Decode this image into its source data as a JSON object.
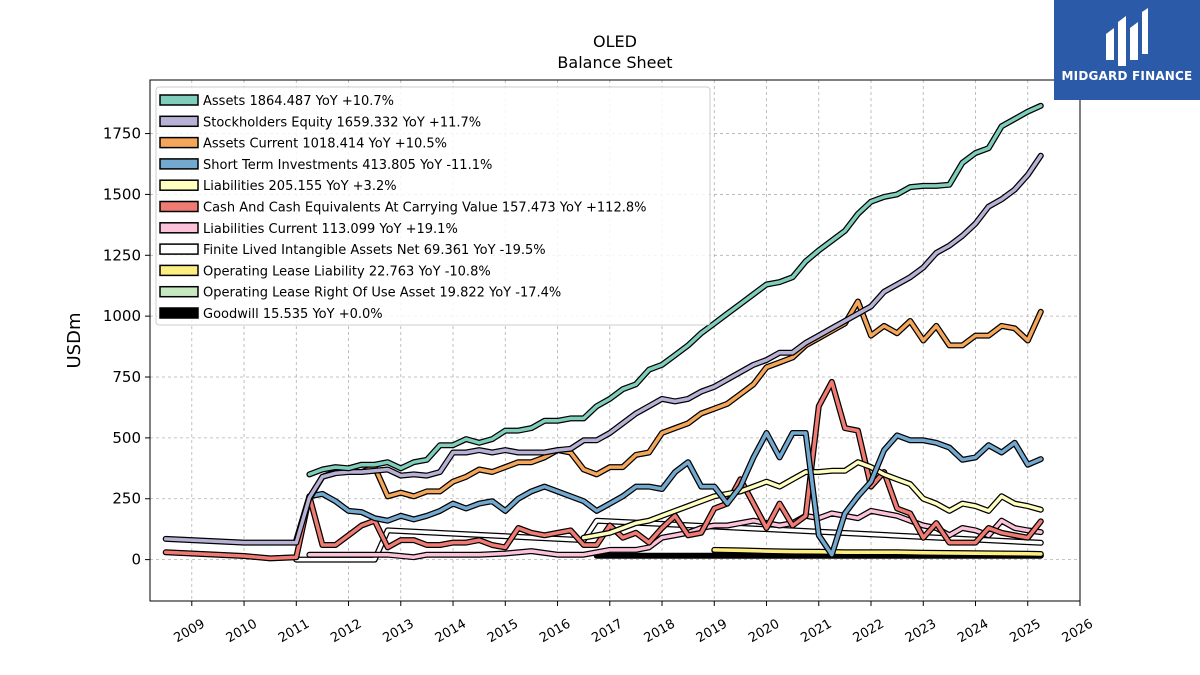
{
  "logo": {
    "brand": "MIDGARD FINANCE"
  },
  "chart_data": {
    "type": "line",
    "title": "OLED",
    "subtitle": "Balance  Sheet",
    "ylabel": "USDm",
    "xlabel": "",
    "xlim": [
      2008.2,
      2026.0
    ],
    "ylim": [
      -170,
      1970
    ],
    "x_ticks": [
      2009,
      2010,
      2011,
      2012,
      2013,
      2014,
      2015,
      2016,
      2017,
      2018,
      2019,
      2020,
      2021,
      2022,
      2023,
      2024,
      2025,
      2026
    ],
    "y_ticks": [
      0,
      250,
      500,
      750,
      1000,
      1250,
      1500,
      1750
    ],
    "grid": true,
    "legend_position": "top-left",
    "series": [
      {
        "name": "Assets",
        "legend": "Assets  1864.487 YoY +10.7%",
        "color": "#7fcdbb",
        "x": [
          2011.25,
          2011.5,
          2011.75,
          2012.0,
          2012.25,
          2012.5,
          2012.75,
          2013.0,
          2013.25,
          2013.5,
          2013.75,
          2014.0,
          2014.25,
          2014.5,
          2014.75,
          2015.0,
          2015.25,
          2015.5,
          2015.75,
          2016.0,
          2016.25,
          2016.5,
          2016.75,
          2017.0,
          2017.25,
          2017.5,
          2017.75,
          2018.0,
          2018.25,
          2018.5,
          2018.75,
          2019.0,
          2019.25,
          2019.5,
          2019.75,
          2020.0,
          2020.25,
          2020.5,
          2020.75,
          2021.0,
          2021.25,
          2021.5,
          2021.75,
          2022.0,
          2022.25,
          2022.5,
          2022.75,
          2023.0,
          2023.25,
          2023.5,
          2023.75,
          2024.0,
          2024.25,
          2024.5,
          2024.75,
          2025.0,
          2025.25
        ],
        "y": [
          350,
          370,
          380,
          375,
          390,
          390,
          400,
          375,
          400,
          410,
          470,
          470,
          495,
          480,
          495,
          530,
          530,
          540,
          570,
          570,
          580,
          580,
          630,
          660,
          700,
          720,
          780,
          800,
          840,
          880,
          930,
          970,
          1010,
          1050,
          1090,
          1130,
          1140,
          1160,
          1225,
          1270,
          1310,
          1350,
          1420,
          1470,
          1490,
          1500,
          1530,
          1535,
          1535,
          1540,
          1630,
          1670,
          1690,
          1780,
          1810,
          1840,
          1864
        ]
      },
      {
        "name": "Stockholders Equity",
        "legend": "Stockholders Equity  1659.332 YoY +11.7%",
        "color": "#b7b1d6",
        "x": [
          2008.5,
          2009.0,
          2009.5,
          2010.0,
          2010.5,
          2011.0,
          2011.25,
          2011.5,
          2011.75,
          2012.0,
          2012.25,
          2012.5,
          2012.75,
          2013.0,
          2013.25,
          2013.5,
          2013.75,
          2014.0,
          2014.25,
          2014.5,
          2014.75,
          2015.0,
          2015.25,
          2015.5,
          2015.75,
          2016.0,
          2016.25,
          2016.5,
          2016.75,
          2017.0,
          2017.25,
          2017.5,
          2017.75,
          2018.0,
          2018.25,
          2018.5,
          2018.75,
          2019.0,
          2019.25,
          2019.5,
          2019.75,
          2020.0,
          2020.25,
          2020.5,
          2020.75,
          2021.0,
          2021.25,
          2021.5,
          2021.75,
          2022.0,
          2022.25,
          2022.5,
          2022.75,
          2023.0,
          2023.25,
          2023.5,
          2023.75,
          2024.0,
          2024.25,
          2024.5,
          2024.75,
          2025.0,
          2025.25
        ],
        "y": [
          85,
          80,
          75,
          70,
          70,
          70,
          255,
          340,
          355,
          360,
          360,
          365,
          370,
          345,
          350,
          345,
          360,
          440,
          440,
          450,
          440,
          450,
          440,
          440,
          440,
          450,
          455,
          490,
          490,
          520,
          560,
          600,
          630,
          660,
          650,
          660,
          690,
          710,
          740,
          770,
          800,
          820,
          850,
          850,
          890,
          920,
          950,
          980,
          1010,
          1040,
          1100,
          1130,
          1160,
          1200,
          1260,
          1290,
          1330,
          1380,
          1450,
          1480,
          1520,
          1580,
          1659
        ]
      },
      {
        "name": "Assets Current",
        "legend": "Assets Current  1018.414 YoY +10.5%",
        "color": "#f4a65a",
        "x": [
          2011.25,
          2011.5,
          2011.75,
          2012.0,
          2012.25,
          2012.5,
          2012.75,
          2013.0,
          2013.25,
          2013.5,
          2013.75,
          2014.0,
          2014.25,
          2014.5,
          2014.75,
          2015.0,
          2015.25,
          2015.5,
          2015.75,
          2016.0,
          2016.25,
          2016.5,
          2016.75,
          2017.0,
          2017.25,
          2017.5,
          2017.75,
          2018.0,
          2018.25,
          2018.5,
          2018.75,
          2019.0,
          2019.25,
          2019.5,
          2019.75,
          2020.0,
          2020.25,
          2020.5,
          2020.75,
          2021.0,
          2021.25,
          2021.5,
          2021.75,
          2022.0,
          2022.25,
          2022.5,
          2022.75,
          2023.0,
          2023.25,
          2023.5,
          2023.75,
          2024.0,
          2024.25,
          2024.5,
          2024.75,
          2025.0,
          2025.25
        ],
        "y": [
          250,
          340,
          360,
          360,
          360,
          380,
          260,
          275,
          260,
          280,
          280,
          320,
          340,
          370,
          360,
          380,
          400,
          400,
          420,
          450,
          440,
          370,
          350,
          380,
          380,
          430,
          440,
          520,
          540,
          560,
          600,
          620,
          640,
          680,
          720,
          790,
          810,
          830,
          880,
          910,
          940,
          970,
          1060,
          920,
          960,
          930,
          980,
          900,
          960,
          880,
          880,
          920,
          920,
          960,
          950,
          900,
          1018
        ]
      },
      {
        "name": "Short Term Investments",
        "legend": "Short Term Investments  413.805 YoY -11.1%",
        "color": "#74a9cf",
        "x": [
          2011.0,
          2011.25,
          2011.5,
          2011.75,
          2012.0,
          2012.25,
          2012.5,
          2012.75,
          2013.0,
          2013.25,
          2013.5,
          2013.75,
          2014.0,
          2014.25,
          2014.5,
          2014.75,
          2015.0,
          2015.25,
          2015.5,
          2015.75,
          2016.0,
          2016.25,
          2016.5,
          2016.75,
          2017.0,
          2017.25,
          2017.5,
          2017.75,
          2018.0,
          2018.25,
          2018.5,
          2018.75,
          2019.0,
          2019.25,
          2019.5,
          2019.75,
          2020.0,
          2020.25,
          2020.5,
          2020.75,
          2021.0,
          2021.25,
          2021.5,
          2021.75,
          2022.0,
          2022.25,
          2022.5,
          2022.75,
          2023.0,
          2023.25,
          2023.5,
          2023.75,
          2024.0,
          2024.25,
          2024.5,
          2024.75,
          2025.0,
          2025.25
        ],
        "y": [
          80,
          260,
          270,
          240,
          200,
          195,
          170,
          160,
          180,
          165,
          180,
          200,
          230,
          210,
          230,
          240,
          200,
          250,
          280,
          300,
          280,
          260,
          240,
          200,
          230,
          260,
          300,
          300,
          290,
          360,
          400,
          300,
          300,
          230,
          300,
          420,
          520,
          420,
          520,
          520,
          100,
          20,
          190,
          260,
          320,
          450,
          510,
          490,
          490,
          480,
          460,
          410,
          420,
          470,
          440,
          480,
          390,
          413
        ]
      },
      {
        "name": "Liabilities",
        "legend": "Liabilities  205.155 YoY +3.2%",
        "color": "#ffffbf",
        "x": [
          2016.5,
          2016.75,
          2017.0,
          2017.25,
          2017.5,
          2017.75,
          2018.0,
          2018.25,
          2018.5,
          2018.75,
          2019.0,
          2019.25,
          2019.5,
          2019.75,
          2020.0,
          2020.25,
          2020.5,
          2020.75,
          2021.0,
          2021.25,
          2021.5,
          2021.75,
          2022.0,
          2022.25,
          2022.5,
          2022.75,
          2023.0,
          2023.25,
          2023.5,
          2023.75,
          2024.0,
          2024.25,
          2024.5,
          2024.75,
          2025.0,
          2025.25
        ],
        "y": [
          90,
          100,
          110,
          130,
          150,
          160,
          180,
          200,
          220,
          240,
          260,
          270,
          280,
          300,
          320,
          300,
          330,
          360,
          360,
          365,
          365,
          400,
          380,
          350,
          330,
          310,
          250,
          230,
          200,
          230,
          220,
          200,
          260,
          230,
          220,
          205
        ]
      },
      {
        "name": "Cash And Cash Equivalents At Carrying Value",
        "legend": "Cash And Cash Equivalents At Carrying Value  157.473 YoY +112.8%",
        "color": "#f07b72",
        "x": [
          2008.5,
          2009.0,
          2009.5,
          2010.0,
          2010.5,
          2011.0,
          2011.25,
          2011.5,
          2011.75,
          2012.0,
          2012.25,
          2012.5,
          2012.75,
          2013.0,
          2013.25,
          2013.5,
          2013.75,
          2014.0,
          2014.25,
          2014.5,
          2014.75,
          2015.0,
          2015.25,
          2015.5,
          2015.75,
          2016.0,
          2016.25,
          2016.5,
          2016.75,
          2017.0,
          2017.25,
          2017.5,
          2017.75,
          2018.0,
          2018.25,
          2018.5,
          2018.75,
          2019.0,
          2019.25,
          2019.5,
          2019.75,
          2020.0,
          2020.25,
          2020.5,
          2020.75,
          2021.0,
          2021.25,
          2021.5,
          2021.75,
          2022.0,
          2022.25,
          2022.5,
          2022.75,
          2023.0,
          2023.25,
          2023.5,
          2023.75,
          2024.0,
          2024.25,
          2024.5,
          2024.75,
          2025.0,
          2025.25
        ],
        "y": [
          30,
          25,
          20,
          15,
          5,
          10,
          260,
          60,
          60,
          100,
          140,
          160,
          50,
          80,
          80,
          60,
          60,
          70,
          70,
          80,
          60,
          50,
          130,
          110,
          100,
          110,
          120,
          60,
          60,
          140,
          90,
          110,
          70,
          130,
          180,
          100,
          110,
          210,
          230,
          330,
          230,
          130,
          230,
          140,
          180,
          630,
          730,
          540,
          530,
          300,
          360,
          210,
          190,
          90,
          150,
          70,
          70,
          70,
          130,
          110,
          100,
          90,
          157
        ]
      },
      {
        "name": "Liabilities Current",
        "legend": "Liabilities Current  113.099 YoY +19.1%",
        "color": "#fbc2d9",
        "x": [
          2011.25,
          2012.0,
          2012.75,
          2013.25,
          2013.5,
          2014.0,
          2014.5,
          2015.0,
          2015.5,
          2016.0,
          2016.5,
          2017.0,
          2017.25,
          2017.5,
          2017.75,
          2018.0,
          2018.25,
          2018.5,
          2018.75,
          2019.0,
          2019.25,
          2019.5,
          2019.75,
          2020.0,
          2020.25,
          2020.5,
          2020.75,
          2021.0,
          2021.25,
          2021.5,
          2021.75,
          2022.0,
          2022.25,
          2022.5,
          2022.75,
          2023.0,
          2023.25,
          2023.5,
          2023.75,
          2024.0,
          2024.25,
          2024.5,
          2024.75,
          2025.0,
          2025.25
        ],
        "y": [
          20,
          20,
          20,
          10,
          20,
          20,
          20,
          25,
          35,
          20,
          20,
          40,
          40,
          40,
          50,
          90,
          100,
          110,
          130,
          140,
          140,
          150,
          160,
          150,
          140,
          150,
          180,
          170,
          190,
          180,
          170,
          200,
          190,
          180,
          160,
          140,
          130,
          100,
          130,
          120,
          100,
          160,
          130,
          120,
          113
        ]
      },
      {
        "name": "Finite Lived Intangible Assets Net",
        "legend": "Finite Lived Intangible Assets Net  69.361 YoY -19.5%",
        "color": "#ffffff",
        "x": [
          2011.0,
          2011.5,
          2012.0,
          2012.5,
          2012.75,
          2016.5,
          2016.75,
          2025.25
        ],
        "y": [
          0,
          0,
          0,
          0,
          120,
          80,
          160,
          69
        ]
      },
      {
        "name": "Operating Lease Liability",
        "legend": "Operating Lease Liability  22.763 YoY -10.8%",
        "color": "#fdee82",
        "x": [
          2019.0,
          2019.5,
          2020.0,
          2020.5,
          2021.0,
          2021.5,
          2022.0,
          2022.5,
          2023.0,
          2023.5,
          2024.0,
          2024.5,
          2025.0,
          2025.25
        ],
        "y": [
          40,
          38,
          35,
          33,
          32,
          30,
          30,
          30,
          28,
          27,
          26,
          25,
          24,
          23
        ]
      },
      {
        "name": "Operating Lease Right Of Use Asset",
        "legend": "Operating Lease Right Of Use Asset  19.822 YoY -17.4%",
        "color": "#c7e9c0",
        "x": [
          2019.0,
          2019.5,
          2020.0,
          2020.5,
          2021.0,
          2021.5,
          2022.0,
          2022.5,
          2023.0,
          2023.5,
          2024.0,
          2024.5,
          2025.0,
          2025.25
        ],
        "y": [
          38,
          35,
          33,
          31,
          30,
          28,
          28,
          27,
          26,
          25,
          24,
          22,
          21,
          20
        ]
      },
      {
        "name": "Goodwill",
        "legend": "Goodwill  15.535 YoY +0.0%",
        "color": "#000000",
        "x": [
          2016.75,
          2025.25
        ],
        "y": [
          15.5,
          15.5
        ]
      }
    ]
  }
}
